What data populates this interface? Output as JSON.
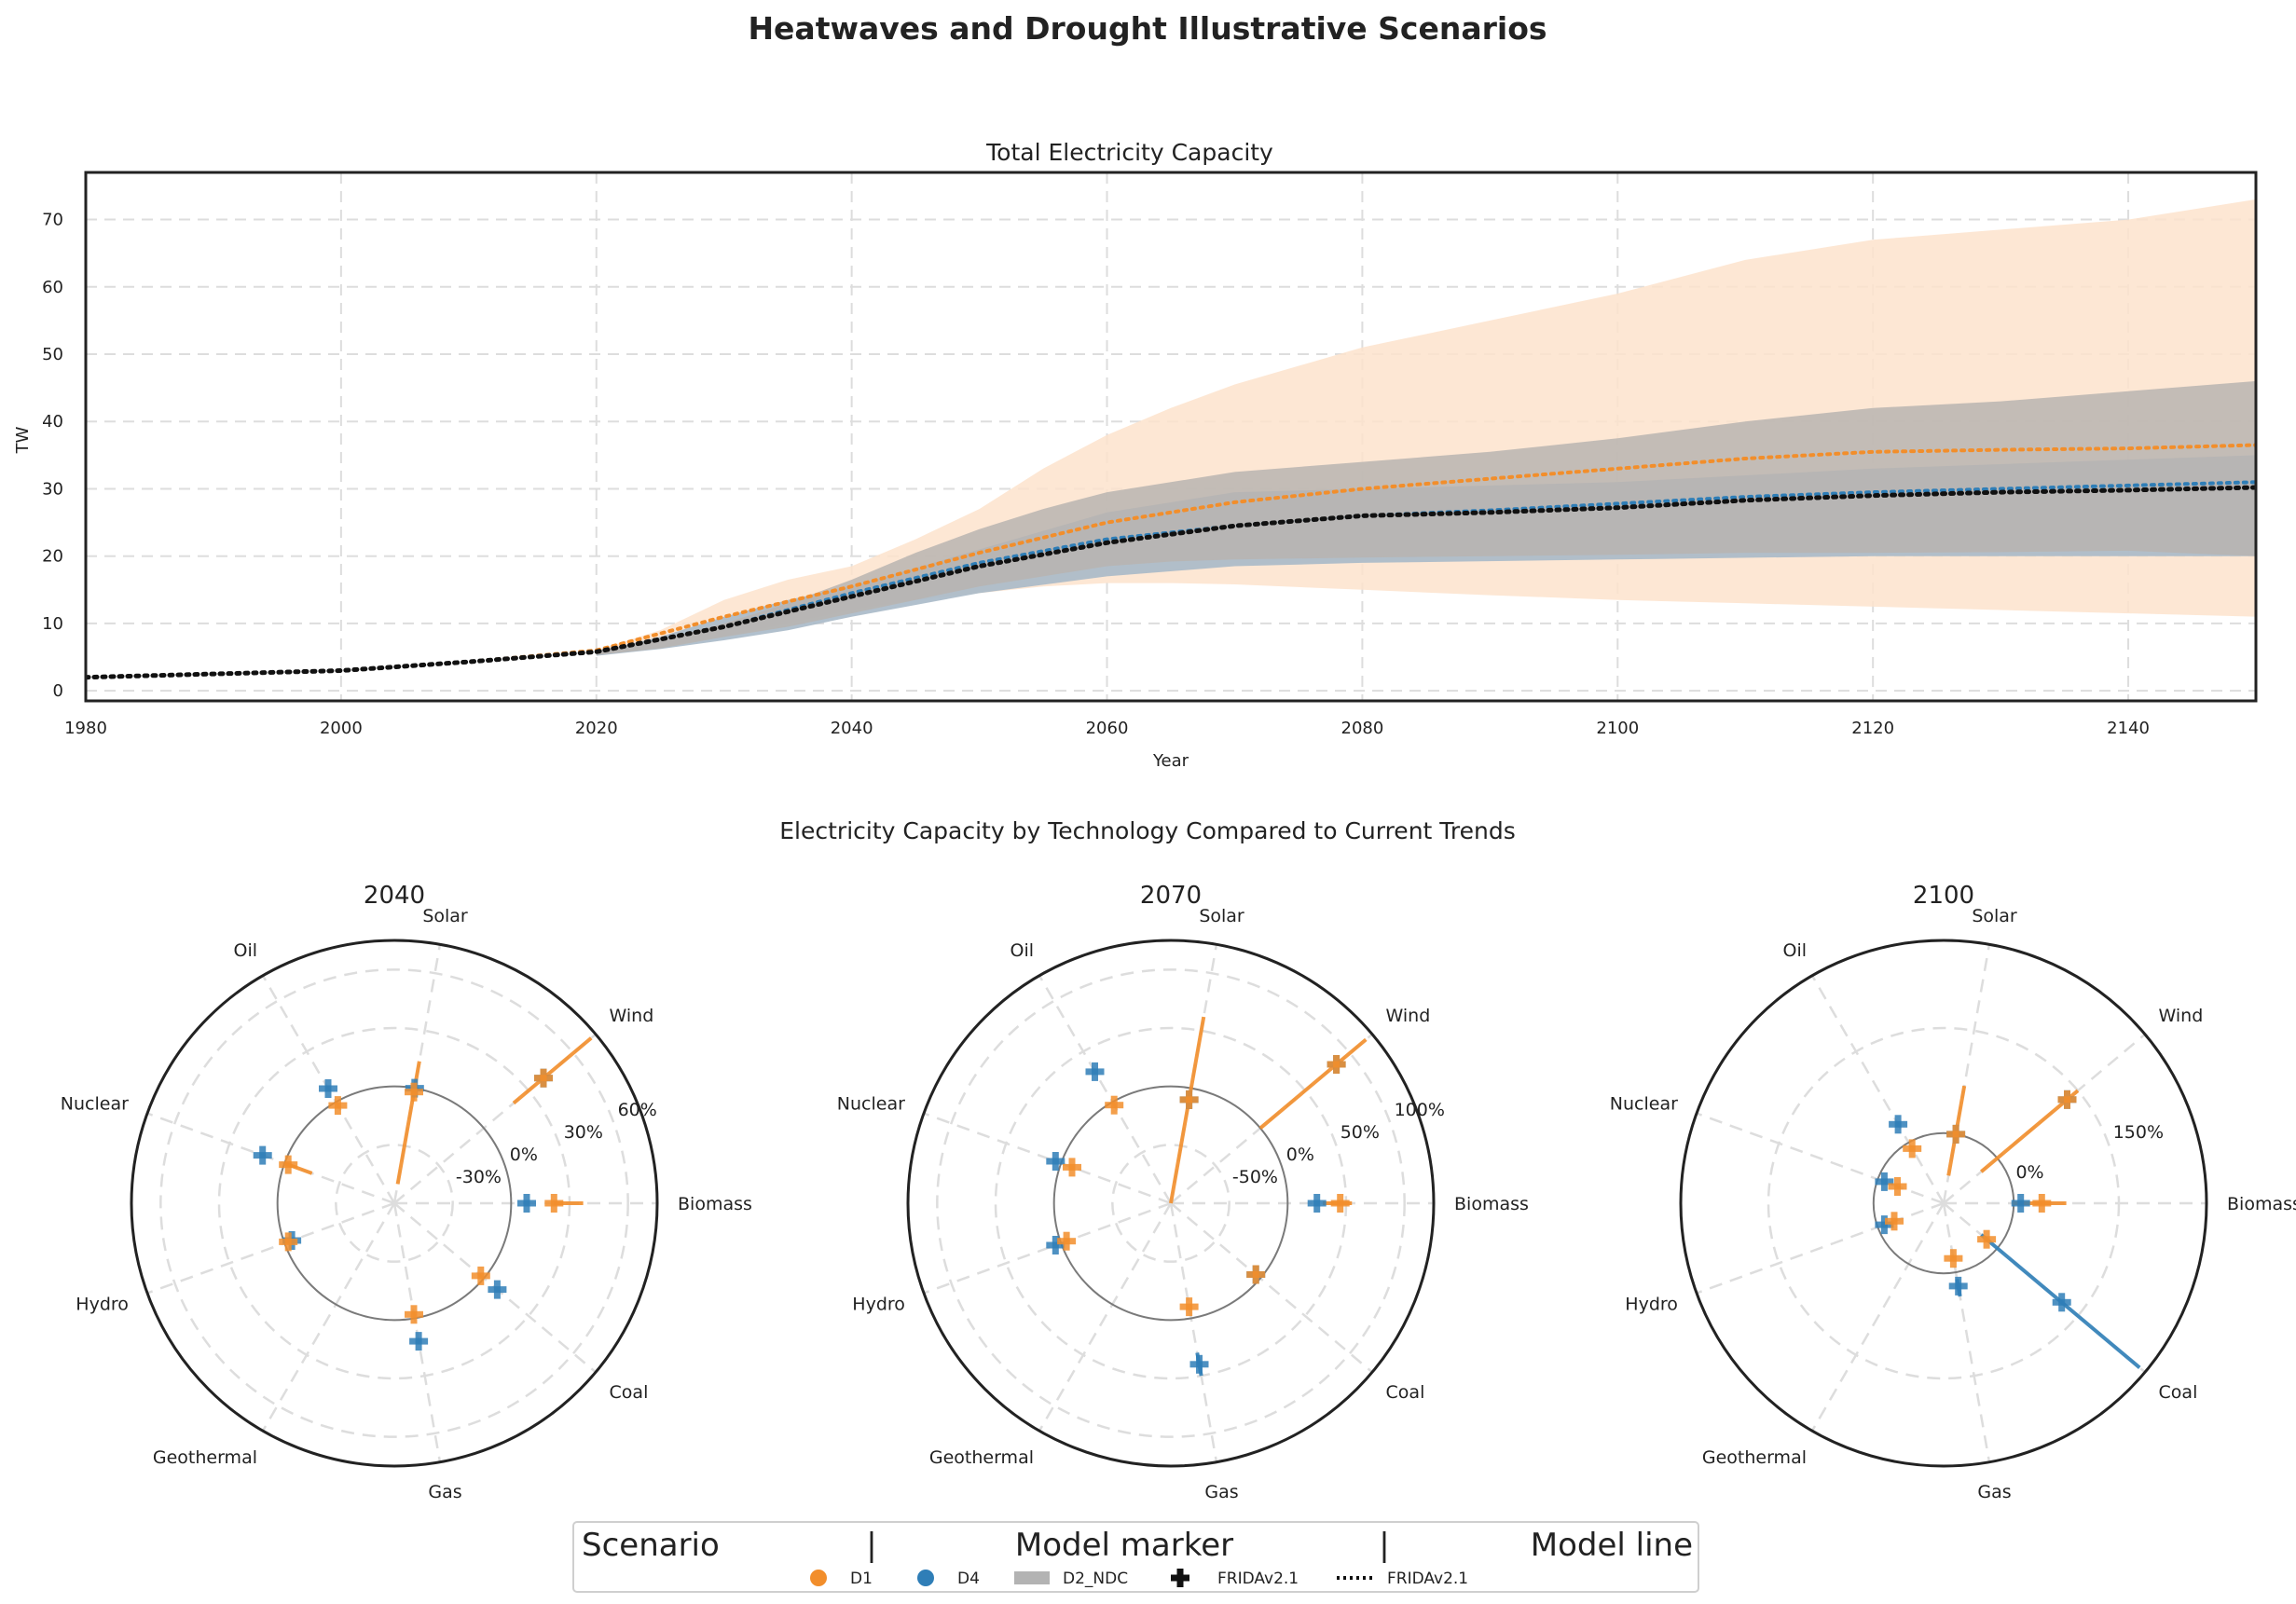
{
  "figure": {
    "title": "Heatwaves and Drought Illustrative Scenarios"
  },
  "colors": {
    "D1": "#f28e2b",
    "D1_band": "#fde3cc",
    "D4": "#2f7eb7",
    "D4_band": "#a9b9c8",
    "D2_NDC": "#b3b3b3",
    "D2_band": "#b8b4b0",
    "FRIDA": "#111111"
  },
  "chart_data": [
    {
      "type": "line",
      "title": "Total Electricity Capacity",
      "xlabel": "Year",
      "ylabel": "TW",
      "xlim": [
        1980,
        2150
      ],
      "ylim": [
        -1.5,
        77
      ],
      "xticks": [
        1980,
        2000,
        2020,
        2040,
        2060,
        2080,
        2100,
        2120,
        2140
      ],
      "yticks": [
        0,
        10,
        20,
        30,
        40,
        50,
        60,
        70
      ],
      "grid": true,
      "bands": [
        {
          "name": "D1",
          "x": [
            2020,
            2025,
            2030,
            2035,
            2040,
            2045,
            2050,
            2055,
            2060,
            2065,
            2070,
            2080,
            2090,
            2100,
            2110,
            2120,
            2130,
            2140,
            2150
          ],
          "upper": [
            6,
            9,
            13.5,
            16.5,
            18.5,
            22.5,
            27,
            33,
            38,
            42,
            45.5,
            51,
            55,
            59,
            64,
            67,
            68.5,
            70,
            73
          ],
          "lower": [
            5.3,
            6.5,
            8,
            10,
            12,
            13.5,
            14.5,
            15.5,
            16,
            16,
            15.8,
            15,
            14.2,
            13.5,
            13,
            12.5,
            12,
            11.5,
            11
          ]
        },
        {
          "name": "D4",
          "x": [
            2020,
            2025,
            2030,
            2035,
            2040,
            2050,
            2060,
            2070,
            2080,
            2100,
            2120,
            2150
          ],
          "upper": [
            5.8,
            8,
            11,
            13.5,
            15.5,
            21,
            26.5,
            29.5,
            30,
            31,
            33,
            35
          ],
          "lower": [
            5.2,
            6.2,
            7.5,
            9,
            11,
            14.5,
            17,
            18.5,
            19,
            19.5,
            20,
            20
          ]
        },
        {
          "name": "D2_NDC",
          "x": [
            2020,
            2025,
            2030,
            2035,
            2040,
            2045,
            2050,
            2055,
            2060,
            2065,
            2070,
            2080,
            2090,
            2100,
            2110,
            2120,
            2130,
            2140,
            2150
          ],
          "upper": [
            6,
            7.5,
            10,
            13,
            16.5,
            20.5,
            24,
            27,
            29.5,
            31,
            32.5,
            34,
            35.5,
            37.5,
            40,
            42,
            43,
            44.5,
            46
          ],
          "lower": [
            5.3,
            6.3,
            8,
            9.5,
            11.5,
            13.5,
            15.5,
            17,
            18.5,
            19.2,
            19.5,
            19.8,
            20,
            20.2,
            20.5,
            20.5,
            20.6,
            20.8,
            20
          ]
        }
      ],
      "series": [
        {
          "name": "D1",
          "x": [
            1980,
            2000,
            2010,
            2020,
            2030,
            2040,
            2050,
            2060,
            2070,
            2080,
            2090,
            2100,
            2110,
            2120,
            2130,
            2140,
            2150
          ],
          "values": [
            2,
            3,
            4.3,
            6,
            11,
            15.5,
            20.5,
            25,
            28,
            30,
            31.5,
            33,
            34.5,
            35.5,
            35.8,
            36,
            36.5
          ]
        },
        {
          "name": "D4",
          "x": [
            1980,
            2000,
            2010,
            2020,
            2030,
            2040,
            2050,
            2060,
            2070,
            2080,
            2090,
            2100,
            2110,
            2120,
            2130,
            2140,
            2150
          ],
          "values": [
            2,
            3,
            4.3,
            5.8,
            9.5,
            14.5,
            19,
            22.5,
            24.5,
            26,
            26.8,
            27.8,
            28.8,
            29.5,
            30,
            30.5,
            31
          ]
        },
        {
          "name": "FRIDAv2.1",
          "x": [
            1980,
            2000,
            2010,
            2020,
            2030,
            2040,
            2050,
            2060,
            2070,
            2080,
            2090,
            2100,
            2110,
            2120,
            2130,
            2140,
            2150
          ],
          "values": [
            2,
            3,
            4.3,
            5.8,
            9.5,
            14,
            18.5,
            22,
            24.5,
            26,
            26.5,
            27.2,
            28.3,
            29,
            29.5,
            29.8,
            30.2
          ]
        }
      ]
    },
    {
      "type": "radar",
      "title": "Electricity Capacity by Technology Compared to Current Trends",
      "categories": [
        "Biomass",
        "Wind",
        "Solar",
        "Oil",
        "Nuclear",
        "Hydro",
        "Geothermal",
        "Gas",
        "Coal"
      ],
      "panels": [
        {
          "title": "2040",
          "rlim": [
            -60,
            75
          ],
          "rticks": [
            -30,
            0,
            30,
            60
          ],
          "rtick_labels": [
            "-30%",
            "0%",
            "30%",
            "60%"
          ],
          "D1": [
            30,
            70,
            -10,
            -5,
            -15,
            -50,
            -60,
            -10,
            -10
          ],
          "D4": [
            15,
            45,
            -10,
            -20,
            -15,
            -15,
            -60,
            -5,
            -5
          ],
          "D1_marker": [
            22,
            40,
            -2,
            -2,
            -2,
            -2,
            null,
            -2,
            -2
          ],
          "D4_marker": [
            8,
            40,
            0,
            8,
            12,
            -4,
            null,
            12,
            9
          ],
          "D1_whisker": [
            [
              22,
              37
            ],
            [
              20,
              72
            ],
            [
              -50,
              14
            ],
            null,
            [
              -15,
              0
            ],
            null,
            null,
            null,
            null
          ],
          "D4_whisker": null
        },
        {
          "title": "2070",
          "rlim": [
            -100,
            125
          ],
          "rticks": [
            -50,
            0,
            50,
            100
          ],
          "rtick_labels": [
            "-50%",
            "0%",
            "50%",
            "100%"
          ],
          "D1": [
            45,
            110,
            -10,
            -10,
            -20,
            -30,
            -100,
            -15,
            -5
          ],
          "D4": [
            25,
            80,
            -10,
            -20,
            -20,
            -30,
            -100,
            40,
            -5
          ],
          "D1_marker": [
            45,
            85,
            -10,
            -3,
            -10,
            -5,
            null,
            -10,
            -5
          ],
          "D4_marker": [
            25,
            85,
            -10,
            30,
            5,
            5,
            null,
            40,
            -5
          ],
          "D1_whisker": [
            [
              30,
              55
            ],
            [
              0,
              118
            ],
            [
              -100,
              62
            ],
            null,
            null,
            null,
            null,
            null,
            null
          ],
          "D4_whisker": [
            null,
            null,
            null,
            null,
            null,
            null,
            null,
            [
              30,
              50
            ],
            null
          ]
        },
        {
          "title": "2100",
          "rlim": [
            -100,
            275
          ],
          "rticks": [
            0,
            150
          ],
          "rtick_labels": [
            "0%",
            "150%"
          ],
          "D1": [
            60,
            130,
            -10,
            -15,
            -30,
            -40,
            -100,
            -25,
            -20
          ],
          "D4": [
            10,
            100,
            -10,
            0,
            -10,
            -20,
            -100,
            20,
            260
          ],
          "D1_marker": [
            40,
            130,
            0,
            -10,
            -30,
            -25,
            null,
            -20,
            -20
          ],
          "D4_marker": [
            10,
            130,
            0,
            30,
            -10,
            -10,
            null,
            20,
            120
          ],
          "D1_whisker": [
            [
              -2,
              75
            ],
            [
              -30,
              150
            ],
            [
              -60,
              70
            ],
            null,
            null,
            null,
            null,
            null,
            null
          ],
          "D4_whisker": [
            null,
            null,
            null,
            null,
            null,
            null,
            null,
            [
              10,
              35
            ],
            [
              -30,
              265
            ]
          ]
        }
      ]
    }
  ],
  "legend": {
    "headers": [
      "Scenario",
      "|",
      "Model marker",
      "|",
      "Model line"
    ],
    "entries": [
      {
        "label": "D1",
        "kind": "dot",
        "color": "#f28e2b"
      },
      {
        "label": "D4",
        "kind": "dot",
        "color": "#2f7eb7"
      },
      {
        "label": "D2_NDC",
        "kind": "patch",
        "color": "#b3b3b3"
      },
      {
        "label": "FRIDAv2.1",
        "kind": "plus",
        "color": "#111111"
      },
      {
        "label": "FRIDAv2.1",
        "kind": "dotline",
        "color": "#111111"
      }
    ]
  }
}
